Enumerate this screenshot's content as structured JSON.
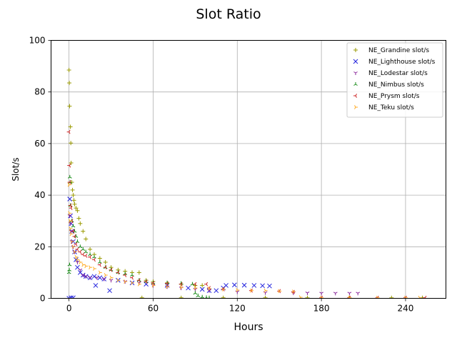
{
  "chart_data": {
    "type": "scatter",
    "title": "Slot Ratio",
    "xlabel": "Hours",
    "ylabel": "Slot/s",
    "xlim": [
      -12.8,
      268.8
    ],
    "ylim": [
      0,
      100
    ],
    "xticks": [
      0,
      60,
      120,
      180,
      240
    ],
    "yticks": [
      0,
      20,
      40,
      60,
      80,
      100
    ],
    "grid": true,
    "legend_position": "top-right",
    "series": [
      {
        "name": "NE_Grandine slot/s",
        "color": "#9a9a00",
        "marker": "+",
        "points": [
          [
            0,
            88.5
          ],
          [
            0.2,
            83.5
          ],
          [
            0.4,
            74.5
          ],
          [
            1,
            66.5
          ],
          [
            1.3,
            60.2
          ],
          [
            1.5,
            52.5
          ],
          [
            2,
            45
          ],
          [
            2.5,
            42
          ],
          [
            3,
            40
          ],
          [
            3.5,
            38
          ],
          [
            4,
            36.5
          ],
          [
            5,
            35
          ],
          [
            6,
            34
          ],
          [
            7,
            31
          ],
          [
            8,
            29
          ],
          [
            10,
            26
          ],
          [
            12,
            23
          ],
          [
            15,
            19
          ],
          [
            18,
            17
          ],
          [
            22,
            15.5
          ],
          [
            26,
            14
          ],
          [
            30,
            12
          ],
          [
            35,
            11
          ],
          [
            40,
            10.5
          ],
          [
            45,
            10
          ],
          [
            50,
            10
          ],
          [
            55,
            7
          ],
          [
            60,
            6.5
          ],
          [
            70,
            6
          ],
          [
            80,
            5.5
          ],
          [
            90,
            5
          ],
          [
            95,
            5
          ],
          [
            52,
            0.2
          ],
          [
            80,
            0.2
          ],
          [
            110,
            0.2
          ],
          [
            140,
            0.2
          ],
          [
            170,
            0.2
          ],
          [
            200,
            0.2
          ],
          [
            230,
            0.2
          ],
          [
            252,
            0.2
          ]
        ]
      },
      {
        "name": "NE_Lighthouse slot/s",
        "color": "#2222dd",
        "marker": "x",
        "points": [
          [
            0,
            0
          ],
          [
            0.5,
            38.5
          ],
          [
            1,
            32
          ],
          [
            1.5,
            29
          ],
          [
            2,
            26
          ],
          [
            3,
            22
          ],
          [
            4,
            18
          ],
          [
            5,
            15
          ],
          [
            6,
            12
          ],
          [
            8,
            10
          ],
          [
            10,
            9
          ],
          [
            12,
            8.5
          ],
          [
            15,
            8
          ],
          [
            18,
            8.5
          ],
          [
            19,
            5
          ],
          [
            22,
            8
          ],
          [
            25,
            7.5
          ],
          [
            29,
            3
          ],
          [
            35,
            7
          ],
          [
            45,
            6
          ],
          [
            55,
            5.5
          ],
          [
            70,
            5
          ],
          [
            85,
            4
          ],
          [
            95,
            3.5
          ],
          [
            100,
            3
          ],
          [
            105,
            3
          ],
          [
            110,
            4
          ],
          [
            112,
            5
          ],
          [
            118,
            5.2
          ],
          [
            125,
            5.1
          ],
          [
            132,
            5
          ],
          [
            138,
            4.9
          ],
          [
            143,
            4.8
          ],
          [
            3,
            0.2
          ],
          [
            1.5,
            0.2
          ]
        ]
      },
      {
        "name": "NE_Lodestar slot/s",
        "color": "#882299",
        "marker": "Y",
        "points": [
          [
            0.5,
            32
          ],
          [
            1,
            29
          ],
          [
            1.5,
            26
          ],
          [
            2,
            22
          ],
          [
            3,
            20
          ],
          [
            4,
            18
          ],
          [
            6,
            14
          ],
          [
            8,
            11
          ],
          [
            10,
            9
          ],
          [
            12,
            8.5
          ],
          [
            15,
            8
          ],
          [
            20,
            8
          ],
          [
            25,
            7.5
          ],
          [
            30,
            7
          ],
          [
            40,
            6.5
          ],
          [
            50,
            6
          ],
          [
            60,
            5
          ],
          [
            70,
            4.5
          ],
          [
            80,
            4
          ],
          [
            90,
            3.5
          ],
          [
            100,
            3
          ],
          [
            120,
            2.5
          ],
          [
            140,
            2.2
          ],
          [
            160,
            2.1
          ],
          [
            170,
            2.1
          ],
          [
            180,
            2
          ],
          [
            190,
            2
          ],
          [
            200,
            2
          ],
          [
            206,
            2
          ]
        ]
      },
      {
        "name": "NE_Nimbus slot/s",
        "color": "#118811",
        "marker": "^",
        "points": [
          [
            0,
            10
          ],
          [
            0.2,
            11
          ],
          [
            0.4,
            13
          ],
          [
            0.6,
            47
          ],
          [
            0.8,
            45
          ],
          [
            1,
            36
          ],
          [
            2,
            30
          ],
          [
            3,
            28
          ],
          [
            4,
            26
          ],
          [
            5,
            24
          ],
          [
            6,
            22
          ],
          [
            8,
            20
          ],
          [
            10,
            19
          ],
          [
            12,
            18
          ],
          [
            15,
            17
          ],
          [
            18,
            16
          ],
          [
            22,
            14
          ],
          [
            26,
            12
          ],
          [
            30,
            11
          ],
          [
            35,
            10
          ],
          [
            40,
            9.5
          ],
          [
            45,
            9
          ],
          [
            50,
            7
          ],
          [
            55,
            6.5
          ],
          [
            60,
            6
          ],
          [
            70,
            6
          ],
          [
            80,
            5.8
          ],
          [
            88,
            5.5
          ],
          [
            90,
            2
          ],
          [
            92,
            1
          ],
          [
            95,
            0.5
          ],
          [
            98,
            0.3
          ],
          [
            100,
            0.2
          ]
        ]
      },
      {
        "name": "NE_Prysm slot/s",
        "color": "#cc2222",
        "marker": "<",
        "points": [
          [
            0,
            64.5
          ],
          [
            0.3,
            51.5
          ],
          [
            0.5,
            45
          ],
          [
            1,
            36
          ],
          [
            1.5,
            35
          ],
          [
            2,
            30
          ],
          [
            3,
            26
          ],
          [
            4,
            24
          ],
          [
            5,
            21
          ],
          [
            6,
            19
          ],
          [
            8,
            18
          ],
          [
            10,
            17
          ],
          [
            12,
            16.5
          ],
          [
            15,
            16
          ],
          [
            18,
            15
          ],
          [
            22,
            13
          ],
          [
            26,
            12
          ],
          [
            30,
            11
          ],
          [
            35,
            10
          ],
          [
            40,
            9
          ],
          [
            45,
            8
          ],
          [
            50,
            7
          ],
          [
            55,
            6.5
          ],
          [
            60,
            6
          ],
          [
            70,
            5.8
          ],
          [
            80,
            5.5
          ],
          [
            90,
            5.5
          ],
          [
            98,
            5.5
          ],
          [
            100,
            4
          ],
          [
            110,
            3.5
          ],
          [
            130,
            3
          ],
          [
            150,
            2.8
          ],
          [
            160,
            2.5
          ],
          [
            180,
            0.2
          ],
          [
            200,
            0.2
          ],
          [
            220,
            0.2
          ],
          [
            240,
            0.2
          ],
          [
            254,
            0.2
          ]
        ]
      },
      {
        "name": "NE_Teku slot/s",
        "color": "#ffaa22",
        "marker": ">",
        "points": [
          [
            0,
            44
          ],
          [
            0.3,
            33
          ],
          [
            0.6,
            30
          ],
          [
            1,
            27
          ],
          [
            1.5,
            25
          ],
          [
            2,
            22
          ],
          [
            3,
            20
          ],
          [
            4,
            18
          ],
          [
            5,
            16
          ],
          [
            6,
            15
          ],
          [
            8,
            14
          ],
          [
            10,
            13
          ],
          [
            12,
            12.5
          ],
          [
            15,
            12
          ],
          [
            18,
            11.5
          ],
          [
            22,
            10
          ],
          [
            26,
            9
          ],
          [
            30,
            8
          ],
          [
            35,
            7
          ],
          [
            40,
            6.5
          ],
          [
            45,
            6
          ],
          [
            50,
            5.5
          ],
          [
            60,
            5
          ],
          [
            70,
            4.5
          ],
          [
            80,
            4.2
          ],
          [
            90,
            4
          ],
          [
            100,
            3.8
          ],
          [
            110,
            3.5
          ],
          [
            120,
            3.2
          ],
          [
            130,
            3
          ],
          [
            140,
            3
          ],
          [
            150,
            2.8
          ],
          [
            160,
            2.6
          ],
          [
            165,
            0.4
          ],
          [
            180,
            0.2
          ],
          [
            200,
            0.2
          ],
          [
            220,
            0.2
          ],
          [
            240,
            0.2
          ],
          [
            250,
            0.2
          ]
        ]
      }
    ]
  }
}
